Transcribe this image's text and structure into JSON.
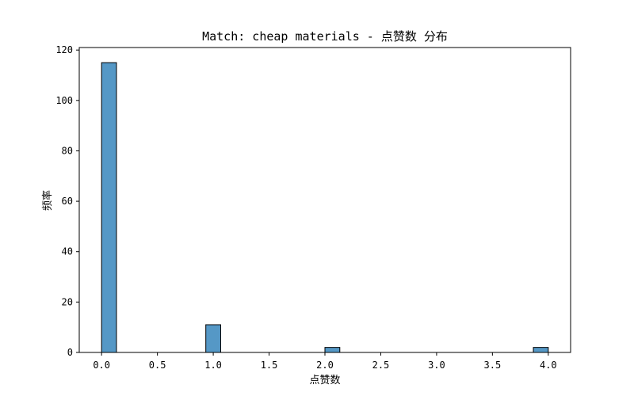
{
  "chart_data": {
    "type": "bar",
    "title": "Match: cheap materials - 点赞数 分布",
    "xlabel": "点赞数",
    "ylabel": "频率",
    "x_ticks": [
      "0.0",
      "0.5",
      "1.0",
      "1.5",
      "2.0",
      "2.5",
      "3.0",
      "3.5",
      "4.0"
    ],
    "y_ticks": [
      "0",
      "20",
      "40",
      "60",
      "80",
      "100",
      "120"
    ],
    "xlim": [
      -0.2,
      4.2
    ],
    "ylim": [
      0,
      121
    ],
    "bin_width": 0.1333,
    "bars": [
      {
        "x_start": 0.0,
        "value": 115
      },
      {
        "x_start": 0.9333,
        "value": 11
      },
      {
        "x_start": 2.0,
        "value": 2
      },
      {
        "x_start": 3.8667,
        "value": 2
      }
    ],
    "bar_color": "#5598c6",
    "bar_edge_color": "#000000",
    "grid": false
  }
}
